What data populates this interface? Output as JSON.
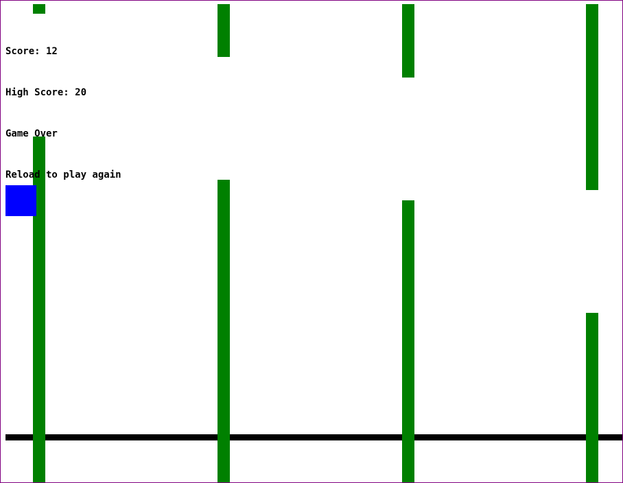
{
  "hud": {
    "score_text": "Score: 12",
    "high_score_text": "High Score: 20",
    "status_text": "Game Over",
    "hint_text": "Reload to play again"
  },
  "game": {
    "score": 12,
    "high_score": 20,
    "state": "game over",
    "pipe_count": 4
  },
  "colors": {
    "pipe": "#008000",
    "player": "#0000ff",
    "ground": "#000000",
    "background": "#ffffff",
    "border": "#800080"
  }
}
